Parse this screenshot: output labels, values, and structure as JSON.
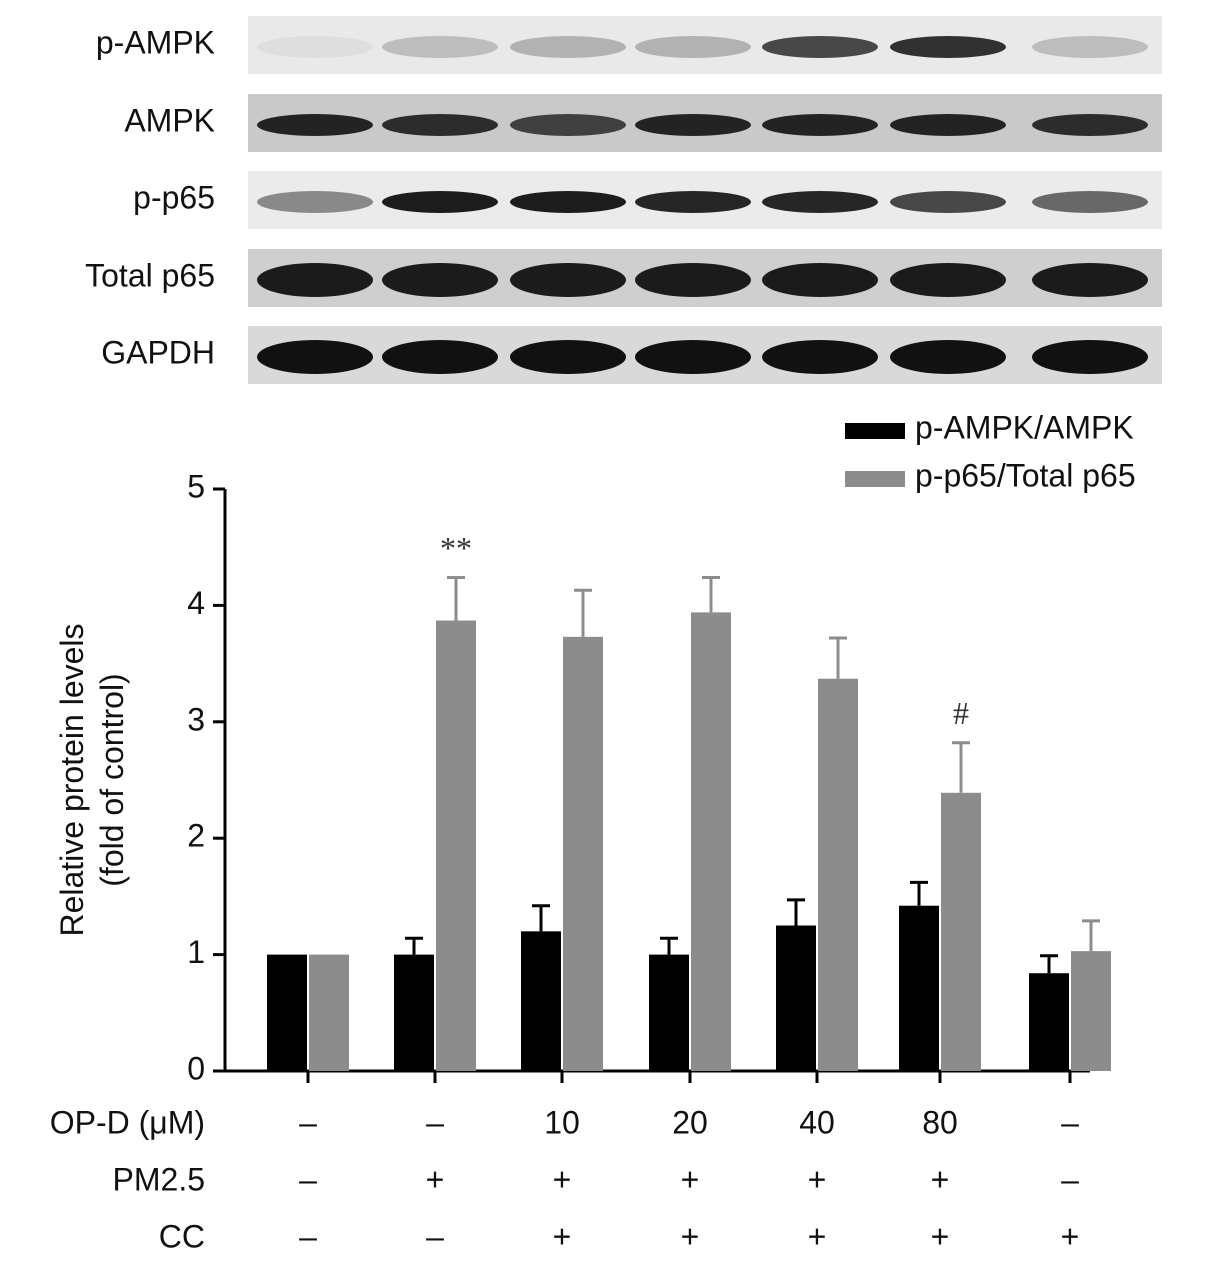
{
  "blot_labels": [
    "p-AMPK",
    "AMPK",
    "p-p65",
    "Total p65",
    "GAPDH"
  ],
  "chart_data": {
    "type": "bar",
    "ylabel": [
      "Relative protein levels",
      "(fold of control)"
    ],
    "ylim": [
      0,
      5
    ],
    "yticks": [
      0,
      1,
      2,
      3,
      4,
      5
    ],
    "series": [
      {
        "name": "p-AMPK/AMPK",
        "color": "#000000",
        "values": [
          1,
          1,
          1.2,
          1,
          1.25,
          1.42,
          0.84
        ],
        "errors": [
          0,
          0.14,
          0.22,
          0.14,
          0.22,
          0.2,
          0.15
        ]
      },
      {
        "name": "p-p65/Total p65",
        "color": "#8c8c8c",
        "values": [
          1,
          3.87,
          3.73,
          3.94,
          3.37,
          2.39,
          1.03
        ],
        "errors": [
          0,
          0.37,
          0.4,
          0.3,
          0.35,
          0.43,
          0.26
        ],
        "annotations": [
          null,
          "**",
          null,
          null,
          null,
          "#",
          null
        ]
      }
    ],
    "conditions": [
      {
        "label": "OP-D (μM)",
        "values": [
          "–",
          "–",
          "10",
          "20",
          "40",
          "80",
          "–"
        ]
      },
      {
        "label": "PM2.5",
        "values": [
          "–",
          "+",
          "+",
          "+",
          "+",
          "+",
          "–"
        ]
      },
      {
        "label": "CC",
        "values": [
          "–",
          "–",
          "+",
          "+",
          "+",
          "+",
          "+"
        ]
      }
    ]
  }
}
